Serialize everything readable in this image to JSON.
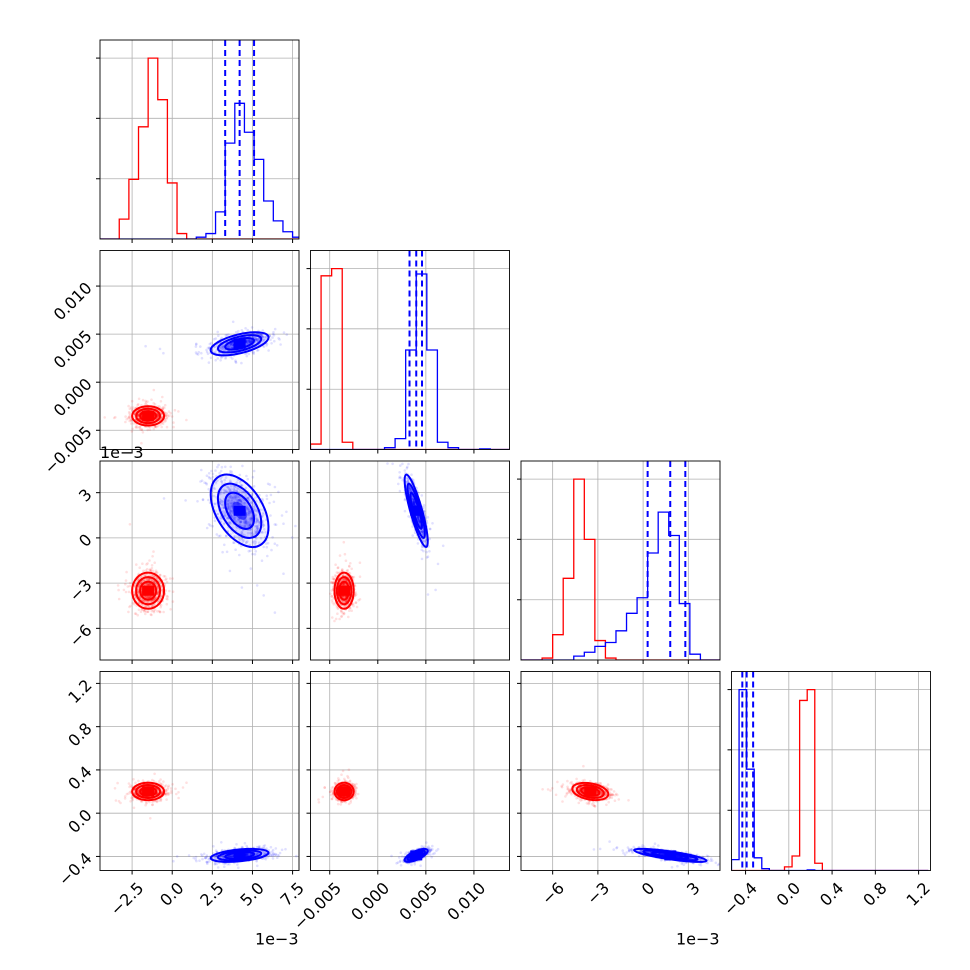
{
  "chart_data": {
    "type": "corner",
    "colors": {
      "series_a": "#ff0000",
      "series_b": "#0000ff",
      "grid": "#b0b0b0",
      "frame": "#000000"
    },
    "series": [
      {
        "color": "#ff0000",
        "centers": {
          "p0": -0.0015,
          "p1": -0.0035,
          "p2": -0.0035,
          "p3": 0.2
        },
        "scales": {
          "p0": 0.0005,
          "p1": 0.0005,
          "p2": 0.0006,
          "p3": 0.04
        }
      },
      {
        "color": "#0000ff",
        "centers": {
          "p0": 0.0042,
          "p1": 0.004,
          "p2": 0.0018,
          "p3": -0.39
        },
        "scales": {
          "p0": 0.0009,
          "p1": 0.0006,
          "p2": 0.0012,
          "p3": 0.03
        },
        "quantiles": {
          "p0": [
            0.0033,
            0.0042,
            0.0051
          ],
          "p1": [
            0.0033,
            0.004,
            0.0046
          ],
          "p2": [
            0.0003,
            0.0018,
            0.0028
          ],
          "p3": [
            -0.43,
            -0.39,
            -0.33
          ]
        }
      }
    ],
    "parameters": [
      {
        "id": "p0",
        "range": [
          -0.0045,
          0.0079
        ],
        "ticks": [
          -0.0025,
          0.0,
          0.0025,
          0.005,
          0.0075
        ],
        "tick_labels": [
          "−2.5",
          "0.0",
          "2.5",
          "5.0",
          "7.5"
        ],
        "offset_label": "1e−3"
      },
      {
        "id": "p1",
        "range": [
          -0.007,
          0.0137
        ],
        "ticks": [
          -0.005,
          0.0,
          0.005,
          0.01
        ],
        "tick_labels": [
          "−0.005",
          "0.000",
          "0.005",
          "0.010"
        ],
        "offset_label": ""
      },
      {
        "id": "p2",
        "range": [
          -0.0081,
          0.0051
        ],
        "ticks": [
          -0.006,
          -0.003,
          0.0,
          0.003
        ],
        "tick_labels": [
          "−6",
          "−3",
          "0",
          "3"
        ],
        "offset_label": "1e−3"
      },
      {
        "id": "p3",
        "range": [
          -0.53,
          1.31
        ],
        "ticks": [
          -0.4,
          0.0,
          0.4,
          0.8,
          1.2
        ],
        "tick_labels": [
          "−0.4",
          "0.0",
          "0.4",
          "0.8",
          "1.2"
        ],
        "offset_label": ""
      }
    ],
    "histograms": [
      {
        "param": "p0",
        "bin_edges": [
          -0.0045,
          -0.0039,
          -0.0033,
          -0.0027,
          -0.0021,
          -0.0015,
          -0.0009,
          -0.0003,
          0.0003,
          0.0009,
          0.0015,
          0.0021,
          0.0027,
          0.0033,
          0.0039,
          0.0045,
          0.0051,
          0.0057,
          0.0063,
          0.0069,
          0.0075,
          0.0081
        ],
        "red": [
          0,
          0,
          0.11,
          0.33,
          0.62,
          1.0,
          0.77,
          0.31,
          0.03,
          0,
          0,
          0,
          0,
          0,
          0,
          0,
          0,
          0,
          0,
          0,
          0
        ],
        "blue": [
          0,
          0,
          0,
          0,
          0,
          0,
          0,
          0,
          0,
          0,
          0.01,
          0.03,
          0.15,
          0.53,
          0.75,
          0.59,
          0.44,
          0.21,
          0.1,
          0.04,
          0.01
        ]
      },
      {
        "param": "p1",
        "bin_edges": [
          -0.007,
          -0.0059,
          -0.0048,
          -0.0037,
          -0.0026,
          -0.0015,
          -0.0004,
          0.0007,
          0.0018,
          0.0029,
          0.004,
          0.0051,
          0.0062,
          0.0073,
          0.0084,
          0.0095,
          0.0106,
          0.0117,
          0.0128,
          0.0139
        ],
        "red": [
          0.03,
          0.96,
          1.0,
          0.04,
          0,
          0,
          0,
          0,
          0,
          0,
          0,
          0,
          0,
          0,
          0,
          0,
          0,
          0,
          0
        ],
        "blue": [
          0,
          0,
          0,
          0,
          0,
          0,
          0,
          0.01,
          0.06,
          0.55,
          0.97,
          0.55,
          0.04,
          0.01,
          0,
          0,
          0.003,
          0,
          0
        ]
      },
      {
        "param": "p2",
        "bin_edges": [
          -0.0081,
          -0.0074,
          -0.0067,
          -0.006,
          -0.0053,
          -0.0046,
          -0.0039,
          -0.0032,
          -0.0025,
          -0.0018,
          -0.0011,
          -0.0004,
          0.0003,
          0.001,
          0.0017,
          0.0024,
          0.0031,
          0.0038,
          0.0045,
          0.0052
        ],
        "red": [
          0,
          0,
          0.01,
          0.13,
          0.42,
          0.93,
          0.62,
          0.1,
          0.01,
          0,
          0,
          0,
          0,
          0,
          0,
          0,
          0,
          0,
          0
        ],
        "blue": [
          0,
          0,
          0,
          0,
          0,
          0.02,
          0.04,
          0.07,
          0.09,
          0.15,
          0.24,
          0.32,
          0.55,
          0.76,
          0.64,
          0.29,
          0.03,
          0,
          0
        ]
      },
      {
        "param": "p3",
        "bin_edges": [
          -0.53,
          -0.46,
          -0.39,
          -0.32,
          -0.25,
          -0.18,
          -0.11,
          -0.04,
          0.03,
          0.1,
          0.17,
          0.24,
          0.31,
          0.38,
          0.45,
          0.52,
          0.59,
          0.66,
          0.73,
          0.8,
          0.87,
          0.94,
          1.01,
          1.08,
          1.15,
          1.22,
          1.29
        ],
        "red": [
          0,
          0,
          0,
          0,
          0,
          0,
          0,
          0.02,
          0.08,
          0.94,
          1.0,
          0.04,
          0,
          0,
          0,
          0,
          0,
          0,
          0,
          0,
          0,
          0,
          0,
          0,
          0,
          0
        ],
        "blue": [
          0.06,
          1.0,
          0.56,
          0.07,
          0.01,
          0,
          0,
          0,
          0,
          0,
          0.003,
          0,
          0,
          0,
          0,
          0,
          0,
          0,
          0,
          0,
          0,
          0,
          0,
          0,
          0,
          0
        ]
      }
    ],
    "correlations": {
      "red": {
        "p1|p0": 0.0,
        "p2|p0": 0.0,
        "p2|p1": 0.0,
        "p3|p0": 0.0,
        "p3|p1": 0.0,
        "p3|p2": -0.3
      },
      "blue": {
        "p1|p0": 0.55,
        "p2|p0": -0.45,
        "p2|p1": -0.85,
        "p3|p0": 0.4,
        "p3|p1": 0.7,
        "p3|p2": -0.8
      }
    },
    "grid": true,
    "legend": "none"
  }
}
